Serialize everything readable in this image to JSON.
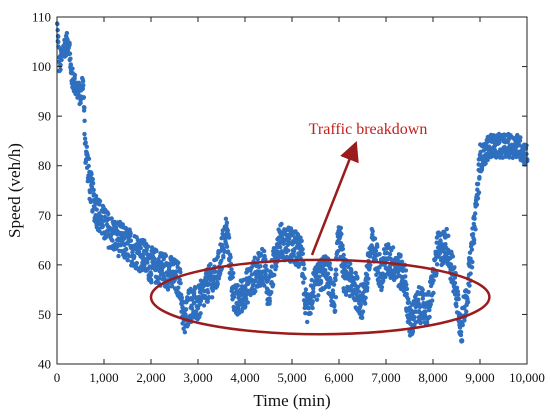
{
  "chart_data": {
    "type": "scatter",
    "title": "",
    "xlabel": "Time (min)",
    "ylabel": "Speed (veh/h)",
    "xlim": [
      0,
      10000
    ],
    "ylim": [
      40,
      110
    ],
    "xticks": [
      0,
      1000,
      2000,
      3000,
      4000,
      5000,
      6000,
      7000,
      8000,
      9000,
      10000
    ],
    "xtick_labels": [
      "0",
      "1,000",
      "2,000",
      "3,000",
      "4,000",
      "5,000",
      "6,000",
      "7,000",
      "8,000",
      "9,000",
      "10,000"
    ],
    "yticks": [
      40,
      50,
      60,
      70,
      80,
      90,
      100,
      110
    ],
    "ytick_labels": [
      "40",
      "50",
      "60",
      "70",
      "80",
      "90",
      "100",
      "110"
    ],
    "grid": false,
    "legend": "none",
    "series": [
      {
        "color": "#2f6fbf",
        "description_points": [
          [
            0,
            108
          ],
          [
            50,
            100
          ],
          [
            150,
            104
          ],
          [
            250,
            105
          ],
          [
            300,
            98
          ],
          [
            400,
            96
          ],
          [
            500,
            94
          ],
          [
            550,
            97
          ],
          [
            600,
            84
          ],
          [
            700,
            76
          ],
          [
            800,
            72
          ],
          [
            1000,
            68
          ],
          [
            1200,
            66
          ],
          [
            1500,
            64
          ],
          [
            1800,
            62
          ],
          [
            2000,
            60
          ],
          [
            2300,
            59
          ],
          [
            2600,
            57
          ],
          [
            2700,
            48
          ],
          [
            2800,
            52
          ],
          [
            3000,
            52
          ],
          [
            3200,
            56
          ],
          [
            3400,
            58
          ],
          [
            3600,
            67
          ],
          [
            3700,
            58
          ],
          [
            3800,
            52
          ],
          [
            4000,
            55
          ],
          [
            4200,
            58
          ],
          [
            4400,
            60
          ],
          [
            4500,
            54
          ],
          [
            4700,
            65
          ],
          [
            5000,
            64
          ],
          [
            5200,
            62
          ],
          [
            5300,
            51
          ],
          [
            5500,
            56
          ],
          [
            5700,
            59
          ],
          [
            5800,
            57
          ],
          [
            5900,
            52
          ],
          [
            6000,
            68
          ],
          [
            6100,
            58
          ],
          [
            6300,
            56
          ],
          [
            6500,
            52
          ],
          [
            6700,
            64
          ],
          [
            6900,
            58
          ],
          [
            7000,
            61
          ],
          [
            7200,
            60
          ],
          [
            7400,
            57
          ],
          [
            7500,
            48
          ],
          [
            7700,
            52
          ],
          [
            7900,
            51
          ],
          [
            8100,
            63
          ],
          [
            8300,
            64
          ],
          [
            8500,
            54
          ],
          [
            8600,
            47
          ],
          [
            8800,
            60
          ],
          [
            9000,
            81
          ],
          [
            9200,
            84
          ],
          [
            9400,
            84
          ],
          [
            9600,
            84
          ],
          [
            9800,
            84
          ],
          [
            10000,
            82
          ]
        ]
      }
    ],
    "annotations": [
      {
        "text": "Traffic breakdown",
        "color": "#c0201c"
      }
    ],
    "ellipse_region": {
      "x_center": 5600,
      "y_center": 53.5,
      "x_radius": 3600,
      "y_radius": 7.5
    }
  }
}
